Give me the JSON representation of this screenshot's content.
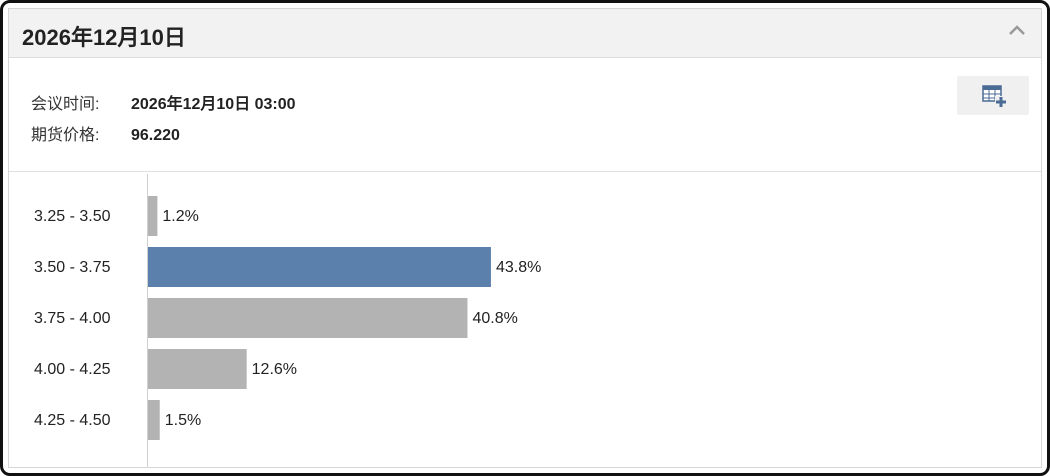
{
  "header": {
    "title": "2026年12月10日"
  },
  "info": [
    {
      "label": "会议时间:",
      "value": "2026年12月10日 03:00"
    },
    {
      "label": "期货价格:",
      "value": "96.220"
    }
  ],
  "chart_data": {
    "type": "bar",
    "orientation": "horizontal",
    "categories": [
      "3.25 - 3.50",
      "3.50 - 3.75",
      "3.75 - 4.00",
      "4.00 - 4.25",
      "4.25 - 4.50"
    ],
    "values": [
      1.2,
      43.8,
      40.8,
      12.6,
      1.5
    ],
    "value_labels": [
      "1.2%",
      "43.8%",
      "40.8%",
      "12.6%",
      "1.5%"
    ],
    "colors": [
      "#b3b3b3",
      "#5b80ab",
      "#b3b3b3",
      "#b3b3b3",
      "#b3b3b3"
    ]
  }
}
